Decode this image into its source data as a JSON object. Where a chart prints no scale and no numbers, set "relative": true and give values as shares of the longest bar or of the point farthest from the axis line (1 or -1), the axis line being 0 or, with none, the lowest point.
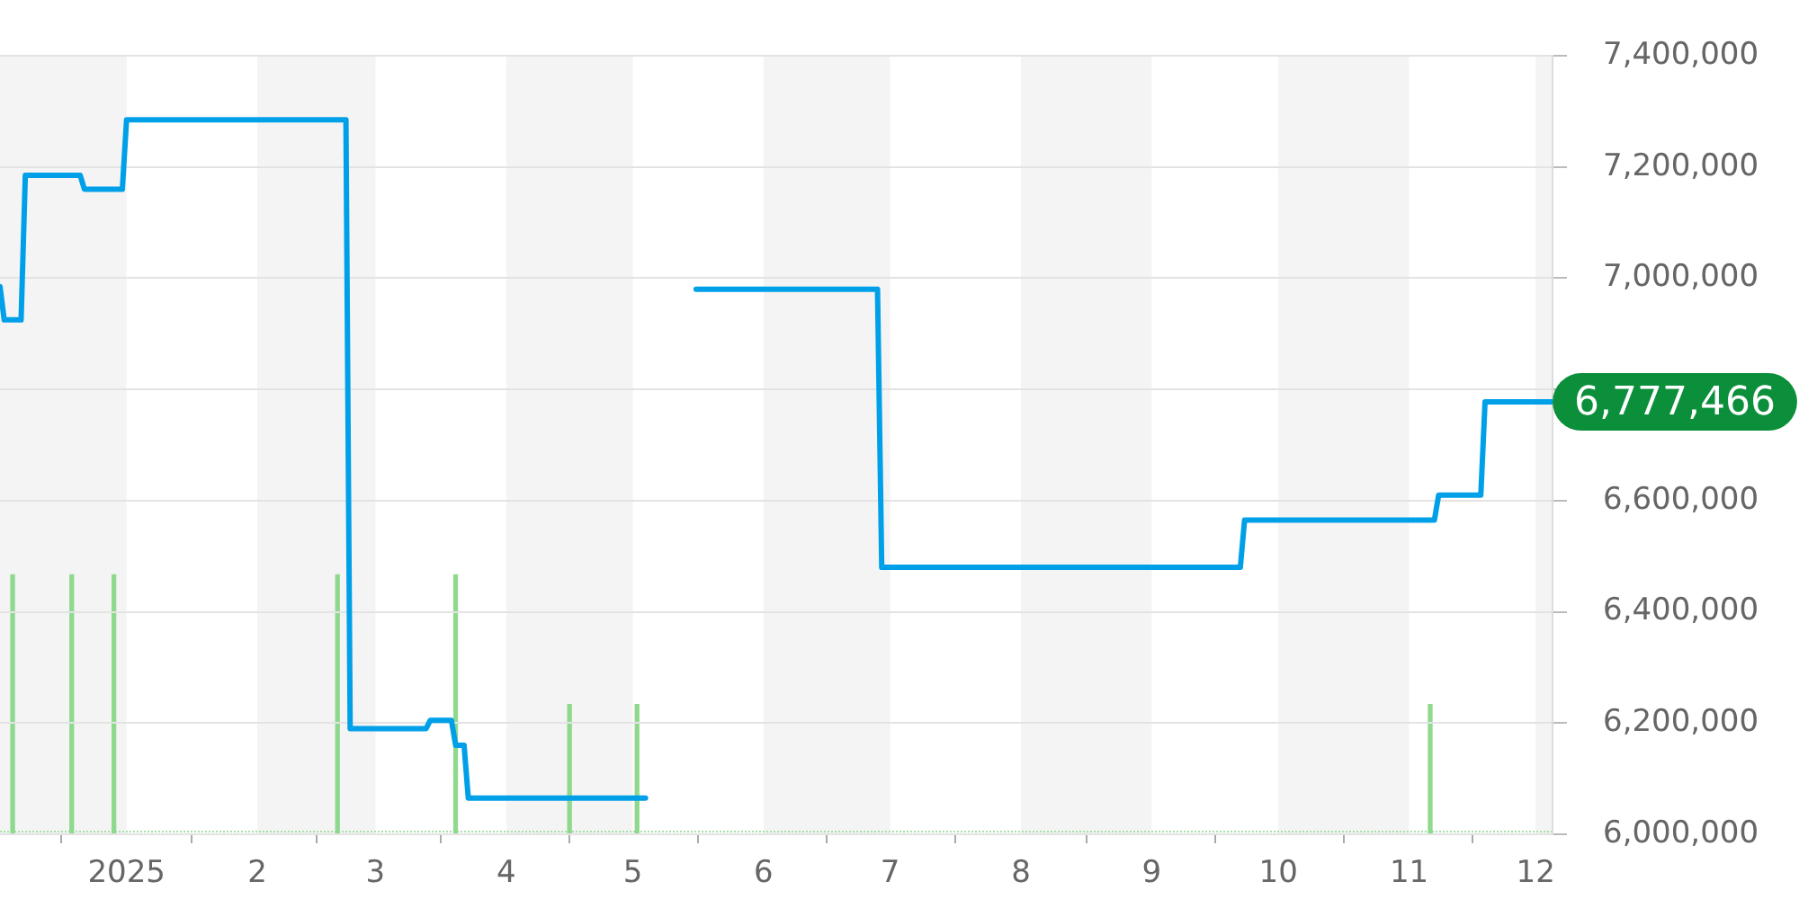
{
  "chart_data": [
    {
      "type": "line",
      "xlim": [
        "2024-12-02",
        "2025-12-05"
      ],
      "xticks": [
        {
          "value": "2025-01-01",
          "label": "2025"
        },
        {
          "value": "2025-02-01",
          "label": "2"
        },
        {
          "value": "2025-03-01",
          "label": "3"
        },
        {
          "value": "2025-04-01",
          "label": "4"
        },
        {
          "value": "2025-05-01",
          "label": "5"
        },
        {
          "value": "2025-06-01",
          "label": "6"
        },
        {
          "value": "2025-07-01",
          "label": "7"
        },
        {
          "value": "2025-08-01",
          "label": "8"
        },
        {
          "value": "2025-09-01",
          "label": "9"
        },
        {
          "value": "2025-10-01",
          "label": "10"
        },
        {
          "value": "2025-11-01",
          "label": "11"
        },
        {
          "value": "2025-12-01",
          "label": "12"
        }
      ],
      "ylim": [
        6000000,
        7400000
      ],
      "yticks": [
        {
          "value": 6000000,
          "label": "6,000,000"
        },
        {
          "value": 6200000,
          "label": "6,200,000"
        },
        {
          "value": 6400000,
          "label": "6,400,000"
        },
        {
          "value": 6600000,
          "label": "6,600,000"
        },
        {
          "value": 6800000,
          "label": null
        },
        {
          "value": 7000000,
          "label": "7,000,000"
        },
        {
          "value": 7200000,
          "label": "7,200,000"
        },
        {
          "value": 7400000,
          "label": "7,400,000"
        }
      ],
      "grid": "y",
      "marker": "none",
      "series": [
        {
          "color": "#00a0e9",
          "x": [
            "2024-12-02",
            "2024-12-03",
            "2024-12-07",
            "2024-12-08",
            "2024-12-21",
            "2024-12-22",
            "2024-12-31",
            "2025-01-01",
            "2025-02-22",
            "2025-02-23",
            "2025-03-13",
            "2025-03-14",
            "2025-03-19",
            "2025-03-20",
            "2025-03-22",
            "2025-03-23",
            "2025-05-04",
            "2025-05-10",
            "2025-05-16",
            "2025-06-28",
            "2025-06-29",
            "2025-09-22",
            "2025-09-23",
            "2025-11-07",
            "2025-11-08",
            "2025-11-18",
            "2025-11-19",
            "2025-12-05"
          ],
          "values": [
            6985000,
            6925000,
            6925000,
            7185000,
            7185000,
            7160000,
            7160000,
            7285000,
            7285000,
            6190000,
            6190000,
            6205000,
            6205000,
            6160000,
            6160000,
            6065000,
            6065000,
            null,
            6980000,
            6980000,
            6480000,
            6480000,
            6565000,
            6565000,
            6610000,
            6610000,
            6777466,
            6777466
          ],
          "value_labels": [
            null,
            null,
            null,
            null,
            null,
            null,
            null,
            null,
            null,
            null,
            null,
            null,
            null,
            null,
            null,
            null,
            null,
            null,
            null,
            null,
            null,
            null,
            null,
            null,
            null,
            null,
            null,
            "6,777,466"
          ]
        }
      ]
    },
    {
      "type": "bar",
      "relative": true,
      "tick_labels": false,
      "xlim": [
        "2024-12-02",
        "2025-12-05"
      ],
      "bands": [
        {
          "axis": "x",
          "from": "2024-12-02",
          "to": "2025-01-01",
          "color": "#f4f4f4"
        },
        {
          "axis": "x",
          "from": "2025-02-01",
          "to": "2025-03-01",
          "color": "#f4f4f4"
        },
        {
          "axis": "x",
          "from": "2025-04-01",
          "to": "2025-05-01",
          "color": "#f4f4f4"
        },
        {
          "axis": "x",
          "from": "2025-06-01",
          "to": "2025-07-01",
          "color": "#f4f4f4"
        },
        {
          "axis": "x",
          "from": "2025-08-01",
          "to": "2025-09-01",
          "color": "#f4f4f4"
        },
        {
          "axis": "x",
          "from": "2025-10-01",
          "to": "2025-11-01",
          "color": "#f4f4f4"
        },
        {
          "axis": "x",
          "from": "2025-12-01",
          "to": "2025-12-05",
          "color": "#f4f4f4"
        }
      ],
      "x": [
        "2024-12-05",
        "2024-12-19",
        "2024-12-29",
        "2025-02-20",
        "2025-03-20",
        "2025-04-16",
        "2025-05-02",
        "2025-11-06"
      ],
      "values": [
        1,
        1,
        1,
        1,
        1,
        0.5,
        0.5,
        0.5
      ],
      "color": "#8fd98f"
    }
  ]
}
